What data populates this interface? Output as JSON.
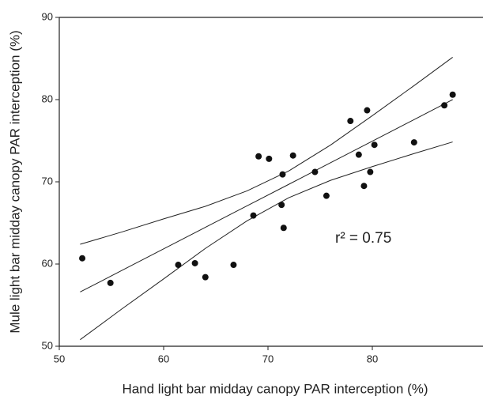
{
  "chart_data": {
    "type": "scatter",
    "xlabel": "Hand light bar midday canopy PAR interception (%)",
    "ylabel": "Mule light bar midday canopy PAR interception (%)",
    "annotation": "r² = 0.75",
    "xlim": [
      50,
      90
    ],
    "ylim": [
      50,
      90
    ],
    "xticks": [
      50,
      60,
      70,
      80
    ],
    "yticks": [
      50,
      60,
      70,
      80,
      90
    ],
    "color": "#111111",
    "x": [
      52.2,
      54.9,
      61.4,
      63.0,
      64.0,
      66.7,
      68.6,
      69.1,
      70.1,
      71.3,
      71.4,
      71.5,
      72.4,
      74.5,
      75.6,
      77.9,
      78.7,
      79.2,
      79.5,
      79.8,
      80.2,
      84.0,
      86.9,
      87.7
    ],
    "values": [
      60.7,
      57.7,
      59.9,
      60.1,
      58.4,
      59.9,
      65.9,
      73.1,
      72.8,
      67.2,
      70.9,
      64.4,
      73.2,
      71.2,
      68.3,
      77.4,
      73.3,
      69.5,
      78.7,
      71.2,
      74.5,
      74.8,
      79.3,
      80.6
    ],
    "lines": {
      "x": [
        52,
        56,
        60,
        64,
        68,
        72,
        76,
        80,
        84,
        87.7
      ],
      "series": [
        {
          "values": [
            62.4,
            63.9,
            65.49,
            67.02,
            68.9,
            71.33,
            74.48,
            78.05,
            81.7,
            85.15
          ]
        },
        {
          "values": [
            56.6,
            59.22,
            61.84,
            64.46,
            67.08,
            69.7,
            72.33,
            74.95,
            77.57,
            80.0
          ]
        },
        {
          "values": [
            50.8,
            54.54,
            58.19,
            61.9,
            65.26,
            68.07,
            70.18,
            71.85,
            73.44,
            74.85
          ]
        }
      ]
    }
  }
}
